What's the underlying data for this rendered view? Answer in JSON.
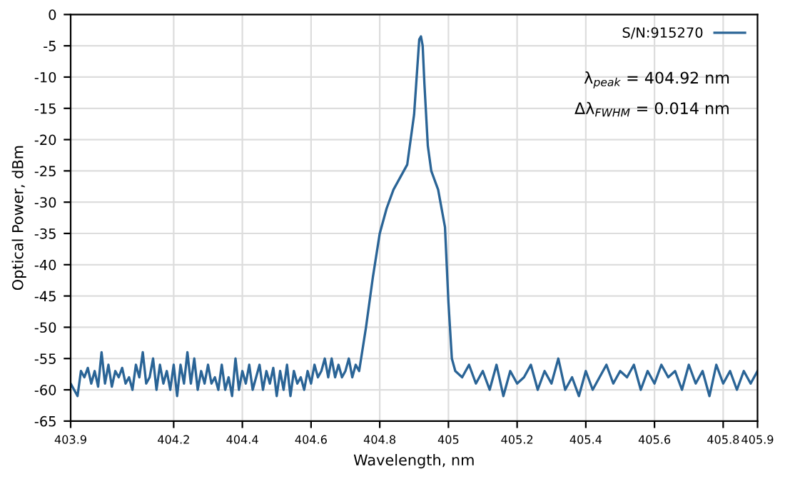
{
  "chart_data": {
    "type": "line",
    "xlabel": "Wavelength, nm",
    "ylabel": "Optical Power, dBm",
    "xlim": [
      403.9,
      405.9
    ],
    "xticks": [
      403.9,
      404.2,
      404.4,
      404.6,
      404.8,
      405,
      405.2,
      405.4,
      405.6,
      405.8,
      405.9
    ],
    "ylim": [
      -65,
      0
    ],
    "yticks": [
      -65,
      -60,
      -55,
      -50,
      -45,
      -40,
      -35,
      -30,
      -25,
      -20,
      -15,
      -10,
      -5,
      0
    ],
    "grid": true,
    "legend": "top right",
    "marker": "none",
    "line_style": "solid",
    "annotations": [
      "λ$_{peak}$ = 404.92 nm",
      "Δλ$_{FWHM}$ = 0.014 nm"
    ],
    "series": [
      {
        "name": "S/N:915270",
        "color": "#2a6496",
        "x": [
          403.9,
          403.91,
          403.92,
          403.93,
          403.94,
          403.95,
          403.96,
          403.97,
          403.98,
          403.99,
          404.0,
          404.01,
          404.02,
          404.03,
          404.04,
          404.05,
          404.06,
          404.07,
          404.08,
          404.09,
          404.1,
          404.11,
          404.12,
          404.13,
          404.14,
          404.15,
          404.16,
          404.17,
          404.18,
          404.19,
          404.2,
          404.21,
          404.22,
          404.23,
          404.24,
          404.25,
          404.26,
          404.27,
          404.28,
          404.29,
          404.3,
          404.31,
          404.32,
          404.33,
          404.34,
          404.35,
          404.36,
          404.37,
          404.38,
          404.39,
          404.4,
          404.41,
          404.42,
          404.43,
          404.44,
          404.45,
          404.46,
          404.47,
          404.48,
          404.49,
          404.5,
          404.51,
          404.52,
          404.53,
          404.54,
          404.55,
          404.56,
          404.57,
          404.58,
          404.59,
          404.6,
          404.61,
          404.62,
          404.63,
          404.64,
          404.65,
          404.66,
          404.67,
          404.68,
          404.69,
          404.7,
          404.71,
          404.72,
          404.73,
          404.74,
          404.76,
          404.78,
          404.8,
          404.82,
          404.84,
          404.86,
          404.88,
          404.9,
          404.91,
          404.915,
          404.92,
          404.925,
          404.93,
          404.94,
          404.95,
          404.97,
          404.99,
          405.0,
          405.01,
          405.02,
          405.04,
          405.06,
          405.08,
          405.1,
          405.12,
          405.14,
          405.16,
          405.18,
          405.2,
          405.22,
          405.24,
          405.26,
          405.28,
          405.3,
          405.32,
          405.34,
          405.36,
          405.38,
          405.4,
          405.42,
          405.44,
          405.46,
          405.48,
          405.5,
          405.52,
          405.54,
          405.56,
          405.58,
          405.6,
          405.62,
          405.64,
          405.66,
          405.68,
          405.7,
          405.72,
          405.74,
          405.76,
          405.78,
          405.8,
          405.82,
          405.84,
          405.86,
          405.88,
          405.9
        ],
        "values": [
          -59,
          -60,
          -61,
          -57,
          -58,
          -56.5,
          -59,
          -57,
          -59.5,
          -54,
          -59,
          -56,
          -59.5,
          -57,
          -58,
          -56.5,
          -59,
          -58,
          -60,
          -56,
          -58,
          -54,
          -59,
          -58,
          -55,
          -60,
          -56,
          -59,
          -57,
          -60,
          -56,
          -61,
          -56,
          -59,
          -54,
          -59,
          -55,
          -60,
          -57,
          -59,
          -56,
          -59,
          -58,
          -60,
          -56,
          -60,
          -58,
          -61,
          -55,
          -60,
          -57,
          -59,
          -56,
          -60,
          -58,
          -56,
          -60,
          -57,
          -59,
          -56.5,
          -61,
          -57,
          -60,
          -56,
          -61,
          -57,
          -59,
          -58,
          -60,
          -57,
          -59,
          -56,
          -58,
          -57,
          -55,
          -58,
          -55,
          -58,
          -56,
          -58,
          -57,
          -55,
          -58,
          -56,
          -57,
          -50,
          -42,
          -35,
          -31,
          -28,
          -26,
          -24,
          -16,
          -8,
          -4,
          -3.5,
          -5,
          -11,
          -21,
          -25,
          -28,
          -34,
          -46,
          -55,
          -57,
          -58,
          -56,
          -59,
          -57,
          -60,
          -56,
          -61,
          -57,
          -59,
          -58,
          -56,
          -60,
          -57,
          -59,
          -55,
          -60,
          -58,
          -61,
          -57,
          -60,
          -58,
          -56,
          -59,
          -57,
          -58,
          -56,
          -60,
          -57,
          -59,
          -56,
          -58,
          -57,
          -60,
          -56,
          -59,
          -57,
          -61,
          -56,
          -59,
          -57,
          -60,
          -57,
          -59,
          -57
        ]
      }
    ]
  }
}
